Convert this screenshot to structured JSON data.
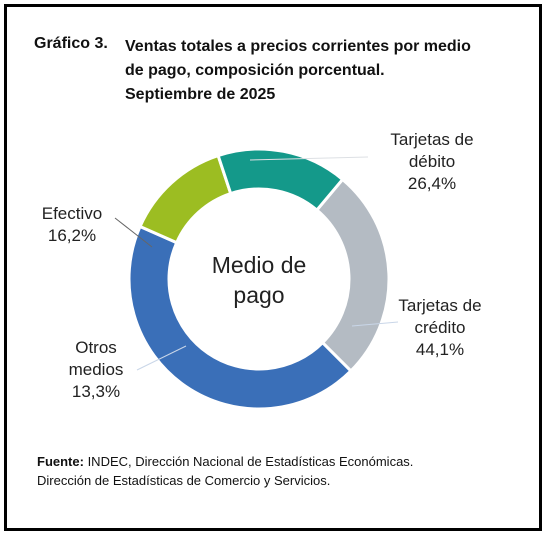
{
  "header": {
    "label": "Gráfico 3.",
    "title_lines": [
      "Ventas totales a precios corrientes por medio",
      "de pago, composición porcentual.",
      "Septiembre de 2025"
    ]
  },
  "chart_data": {
    "type": "pie",
    "title": "Ventas totales a precios corrientes por medio de pago, composición porcentual. Septiembre de 2025",
    "center_label_lines": [
      "Medio de",
      "pago"
    ],
    "slices": [
      {
        "label_lines": [
          "Tarjetas de",
          "débito"
        ],
        "value": 26.4,
        "value_label": "26,4%",
        "color": "#b4bbc3"
      },
      {
        "label_lines": [
          "Tarjetas de",
          "crédito"
        ],
        "value": 44.1,
        "value_label": "44,1%",
        "color": "#3a6fb8"
      },
      {
        "label_lines": [
          "Otros",
          "medios"
        ],
        "value": 13.3,
        "value_label": "13,3%",
        "color": "#9cbd22"
      },
      {
        "label_lines": [
          "Efectivo"
        ],
        "value": 16.2,
        "value_label": "16,2%",
        "color": "#14998a"
      }
    ]
  },
  "source": {
    "label": "Fuente:",
    "line1": " INDEC, Dirección Nacional de Estadísticas Económicas.",
    "line2": "Dirección de Estadísticas de Comercio y Servicios."
  }
}
